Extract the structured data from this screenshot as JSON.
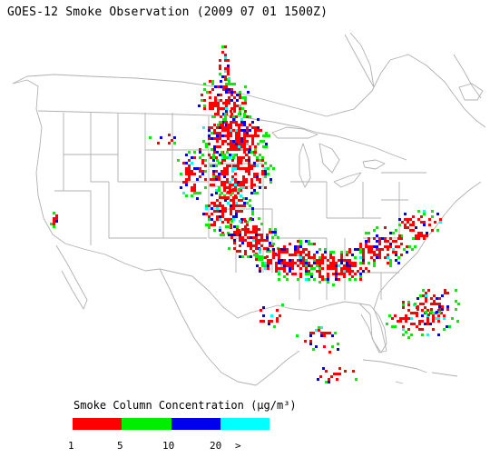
{
  "title": "GOES-12 Smoke Observation (2009 07 01  1500Z)",
  "legend": {
    "title": "Smoke Column Concentration (μg/m³)",
    "bins": [
      {
        "color": "#ff0000"
      },
      {
        "color": "#00ee00"
      },
      {
        "color": "#0000ee"
      },
      {
        "color": "#00ffff"
      }
    ],
    "tick_labels": [
      "1",
      "5",
      "10",
      "20",
      ">"
    ]
  },
  "colors": {
    "boundary": "#b0b0b0",
    "background": "#ffffff"
  }
}
